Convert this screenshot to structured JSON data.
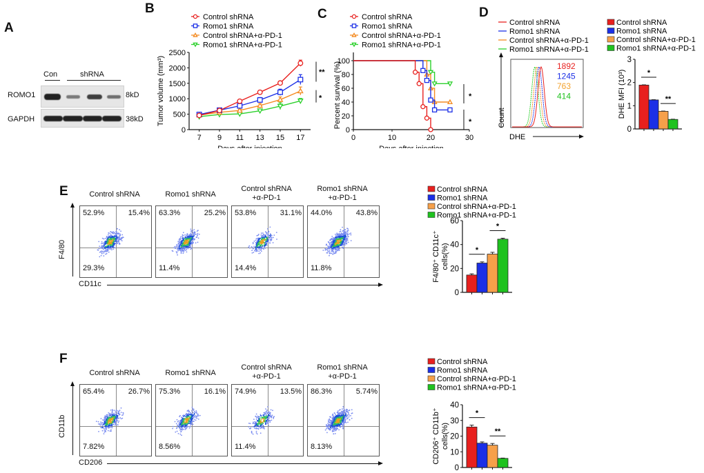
{
  "panels": {
    "A": {
      "letter": "A",
      "lane_labels": {
        "con": "Con",
        "shrna": "shRNA"
      },
      "rows": [
        {
          "label": "ROMO1",
          "size": "8kD",
          "band_intensity": [
            1.0,
            0.45,
            0.8,
            0.55
          ]
        },
        {
          "label": "GAPDH",
          "size": "38kD",
          "band_intensity": [
            1.0,
            1.0,
            1.0,
            1.0
          ]
        }
      ]
    },
    "B": {
      "letter": "B"
    },
    "C": {
      "letter": "C"
    },
    "D": {
      "letter": "D",
      "histogram": {
        "legend": [
          "Control shRNA",
          "Romo1 shRNA",
          "Control shRNA+α-PD-1",
          "Romo1 shRNA+α-PD-1"
        ],
        "mfi_values": [
          "1892",
          "1245",
          "763",
          "414"
        ],
        "ylabel": "Count",
        "xlabel": "DHE"
      }
    },
    "E": {
      "letter": "E",
      "xlabel": "CD11c",
      "ylabel": "F4/80",
      "plots": [
        {
          "title1": "Control shRNA",
          "title2": "",
          "ul": "52.9%",
          "ur": "15.4%",
          "ll": "29.3%"
        },
        {
          "title1": "Romo1 shRNA",
          "title2": "",
          "ul": "63.3%",
          "ur": "25.2%",
          "ll": "11.4%"
        },
        {
          "title1": "Control shRNA",
          "title2": "+α-PD-1",
          "ul": "53.8%",
          "ur": "31.1%",
          "ll": "14.4%"
        },
        {
          "title1": "Romo1 shRNA",
          "title2": "+α-PD-1",
          "ul": "44.0%",
          "ur": "43.8%",
          "ll": "11.8%"
        }
      ]
    },
    "F": {
      "letter": "F",
      "xlabel": "CD206",
      "ylabel": "CD11b",
      "plots": [
        {
          "title1": "Control shRNA",
          "title2": "",
          "ul": "65.4%",
          "ur": "26.7%",
          "ll": "7.82%"
        },
        {
          "title1": "Romo1 shRNA",
          "title2": "",
          "ul": "75.3%",
          "ur": "16.1%",
          "ll": "8.56%"
        },
        {
          "title1": "Control shRNA",
          "title2": "+α-PD-1",
          "ul": "74.9%",
          "ur": "13.5%",
          "ll": "11.4%"
        },
        {
          "title1": "Romo1 shRNA",
          "title2": "+α-PD-1",
          "ul": "86.3%",
          "ur": "5.74%",
          "ll": "8.13%"
        }
      ]
    }
  },
  "colors": {
    "control": "#e8201e",
    "romo1": "#1b2fe6",
    "control_pd1": "#f6a04a",
    "romo1_pd1": "#1fc21f",
    "line_control_pd1": "#f48a20",
    "line_romo1_pd1": "#2bd02b"
  },
  "chart_data": [
    {
      "id": "B",
      "type": "line",
      "title": "",
      "xlabel": "Days after injection",
      "ylabel": "Tumor volume (mm³)",
      "x": [
        7,
        9,
        11,
        13,
        15,
        17
      ],
      "xticks": [
        "7",
        "9",
        "11",
        "13",
        "15",
        "17"
      ],
      "ylim": [
        0,
        2500
      ],
      "yticks": [
        "0",
        "500",
        "1000",
        "1500",
        "2000",
        "2500"
      ],
      "series": [
        {
          "name": "Control shRNA",
          "marker": "circle",
          "values": [
            460,
            620,
            920,
            1210,
            1510,
            2150
          ],
          "err": [
            30,
            30,
            50,
            60,
            60,
            100
          ]
        },
        {
          "name": "Romo1 shRNA",
          "marker": "square",
          "values": [
            490,
            630,
            770,
            960,
            1210,
            1620
          ],
          "err": [
            30,
            30,
            40,
            80,
            100,
            160
          ]
        },
        {
          "name": "Control shRNA+α-PD-1",
          "marker": "triangle-up",
          "values": [
            470,
            560,
            620,
            780,
            970,
            1250
          ],
          "err": [
            30,
            30,
            40,
            60,
            90,
            130
          ]
        },
        {
          "name": "Romo1 shRNA+α-PD-1",
          "marker": "triangle-down",
          "values": [
            420,
            490,
            510,
            610,
            760,
            930
          ],
          "err": [
            30,
            30,
            40,
            50,
            110,
            80
          ]
        }
      ],
      "annotations": [
        "**",
        "*"
      ],
      "legend": "top"
    },
    {
      "id": "C",
      "type": "line",
      "subtype": "kaplan-meier",
      "title": "",
      "xlabel": "Days after injection",
      "ylabel": "Percent survival (%)",
      "xlim": [
        0,
        30
      ],
      "xticks": [
        "0",
        "10",
        "20",
        "30"
      ],
      "ylim": [
        0,
        100
      ],
      "yticks": [
        "0",
        "20",
        "40",
        "60",
        "80",
        "100"
      ],
      "series": [
        {
          "name": "Control shRNA",
          "marker": "circle",
          "steps": [
            [
              0,
              100
            ],
            [
              16,
              83.3
            ],
            [
              17,
              66.7
            ],
            [
              18,
              33.3
            ],
            [
              19,
              16.7
            ],
            [
              20,
              0
            ]
          ]
        },
        {
          "name": "Romo1 shRNA",
          "marker": "square",
          "steps": [
            [
              0,
              100
            ],
            [
              18,
              85.7
            ],
            [
              19,
              71.4
            ],
            [
              20,
              42.9
            ],
            [
              21,
              28.6
            ],
            [
              25,
              28.6
            ]
          ]
        },
        {
          "name": "Control shRNA+α-PD-1",
          "marker": "triangle-up",
          "steps": [
            [
              0,
              100
            ],
            [
              19,
              80
            ],
            [
              20,
              60
            ],
            [
              21,
              40
            ],
            [
              25,
              40
            ]
          ]
        },
        {
          "name": "Romo1 shRNA+α-PD-1",
          "marker": "triangle-down",
          "steps": [
            [
              0,
              100
            ],
            [
              20,
              83.3
            ],
            [
              21,
              66.7
            ],
            [
              25,
              66.7
            ]
          ]
        }
      ],
      "annotations": [
        "*",
        "*"
      ],
      "legend": "top"
    },
    {
      "id": "D-bar",
      "type": "bar",
      "title": "",
      "xlabel": "",
      "ylabel": "DHE MFI (10³)",
      "categories": [
        "Control shRNA",
        "Romo1 shRNA",
        "Control shRNA+α-PD-1",
        "Romo1 shRNA+α-PD-1"
      ],
      "values": [
        1.89,
        1.25,
        0.76,
        0.41
      ],
      "err": [
        0.01,
        0.01,
        0.01,
        0.01
      ],
      "ylim": [
        0,
        3
      ],
      "yticks": [
        "0",
        "1",
        "2",
        "3"
      ],
      "significance": [
        {
          "pair": [
            0,
            1
          ],
          "label": "*"
        },
        {
          "pair": [
            2,
            3
          ],
          "label": "**"
        }
      ],
      "legend": "top"
    },
    {
      "id": "E-bar",
      "type": "bar",
      "title": "",
      "xlabel": "",
      "ylabel_line1": "F4/80⁺ CD11c⁺",
      "ylabel_line2": "cells(%)",
      "categories": [
        "Control shRNA",
        "Romo1 shRNA",
        "Control shRNA+α-PD-1",
        "Romo1 shRNA+α-PD-1"
      ],
      "values": [
        14.5,
        24.5,
        32,
        44.5
      ],
      "err": [
        1,
        1,
        1.5,
        0.8
      ],
      "ylim": [
        0,
        60
      ],
      "yticks": [
        "0",
        "20",
        "40",
        "60"
      ],
      "significance": [
        {
          "pair": [
            0,
            1
          ],
          "label": "*"
        },
        {
          "pair": [
            2,
            3
          ],
          "label": "*"
        }
      ],
      "legend": "top"
    },
    {
      "id": "F-bar",
      "type": "bar",
      "title": "",
      "xlabel": "",
      "ylabel_line1": "CD206⁺ CD11b⁺",
      "ylabel_line2": "cells(%)",
      "categories": [
        "Control shRNA",
        "Romo1 shRNA",
        "Control shRNA+α-PD-1",
        "Romo1 shRNA+α-PD-1"
      ],
      "values": [
        25.8,
        15.5,
        14.2,
        5.8
      ],
      "err": [
        1.2,
        0.8,
        1.1,
        0.2
      ],
      "ylim": [
        0,
        40
      ],
      "yticks": [
        "0",
        "10",
        "20",
        "30",
        "40"
      ],
      "significance": [
        {
          "pair": [
            0,
            1
          ],
          "label": "*"
        },
        {
          "pair": [
            2,
            3
          ],
          "label": "**"
        }
      ],
      "legend": "top"
    }
  ]
}
